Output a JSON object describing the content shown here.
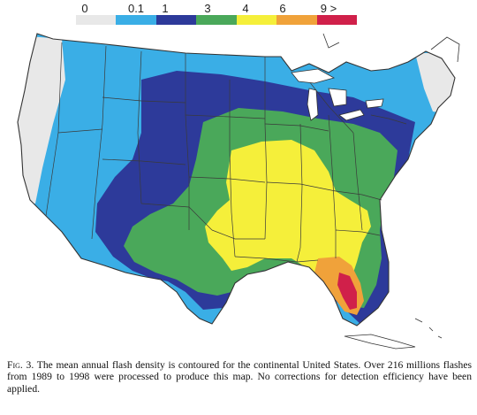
{
  "legend": {
    "labels": [
      "0",
      "0.1",
      "1",
      "3",
      "4",
      "6",
      "9 >"
    ],
    "colors": [
      "#e8e8e8",
      "#3aaee6",
      "#2d3a9a",
      "#4aa85a",
      "#f5ef3a",
      "#f0a23a",
      "#d0204a"
    ]
  },
  "map": {
    "background": "#ffffff",
    "outline_color": "#333333",
    "water_color": "#ffffff"
  },
  "caption": {
    "figure_label": "Fig. 3.",
    "text": "The mean annual flash density is contoured for the continental United States. Over 216 millions flashes from 1989 to 1998 were processed to produce this map. No corrections for detection efficiency have been applied."
  }
}
